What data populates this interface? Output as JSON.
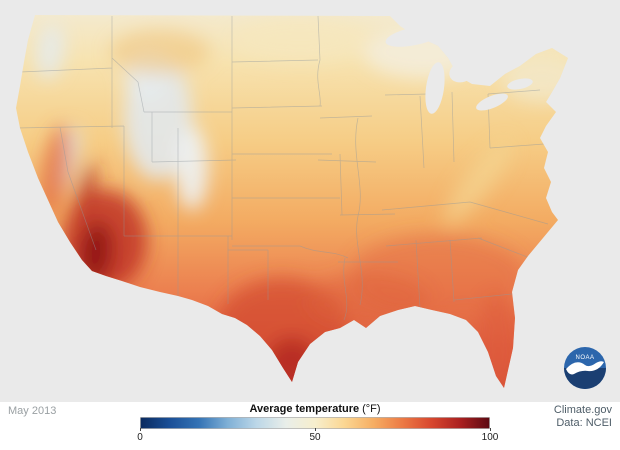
{
  "period": {
    "label": "May 2013"
  },
  "legend": {
    "title": "Average temperature",
    "unit": "(°F)",
    "tick_labels": [
      "0",
      "50",
      "100"
    ],
    "range": {
      "min": 0,
      "max": 100
    },
    "gradient": [
      "#0a2a5e",
      "#1a4f97",
      "#3473b5",
      "#7fb0d6",
      "#bcd7e8",
      "#e9eee9",
      "#f7eecd",
      "#fbd793",
      "#f6ae63",
      "#ec7a45",
      "#d8472e",
      "#aa2020",
      "#5c0912"
    ]
  },
  "attribution": {
    "source": "Climate.gov",
    "data_source": "Data: NCEI"
  },
  "noaa_logo": {
    "text": "NOAA"
  },
  "background": {
    "map_bg": "#eaeaea",
    "footer_bg": "#ffffff"
  }
}
